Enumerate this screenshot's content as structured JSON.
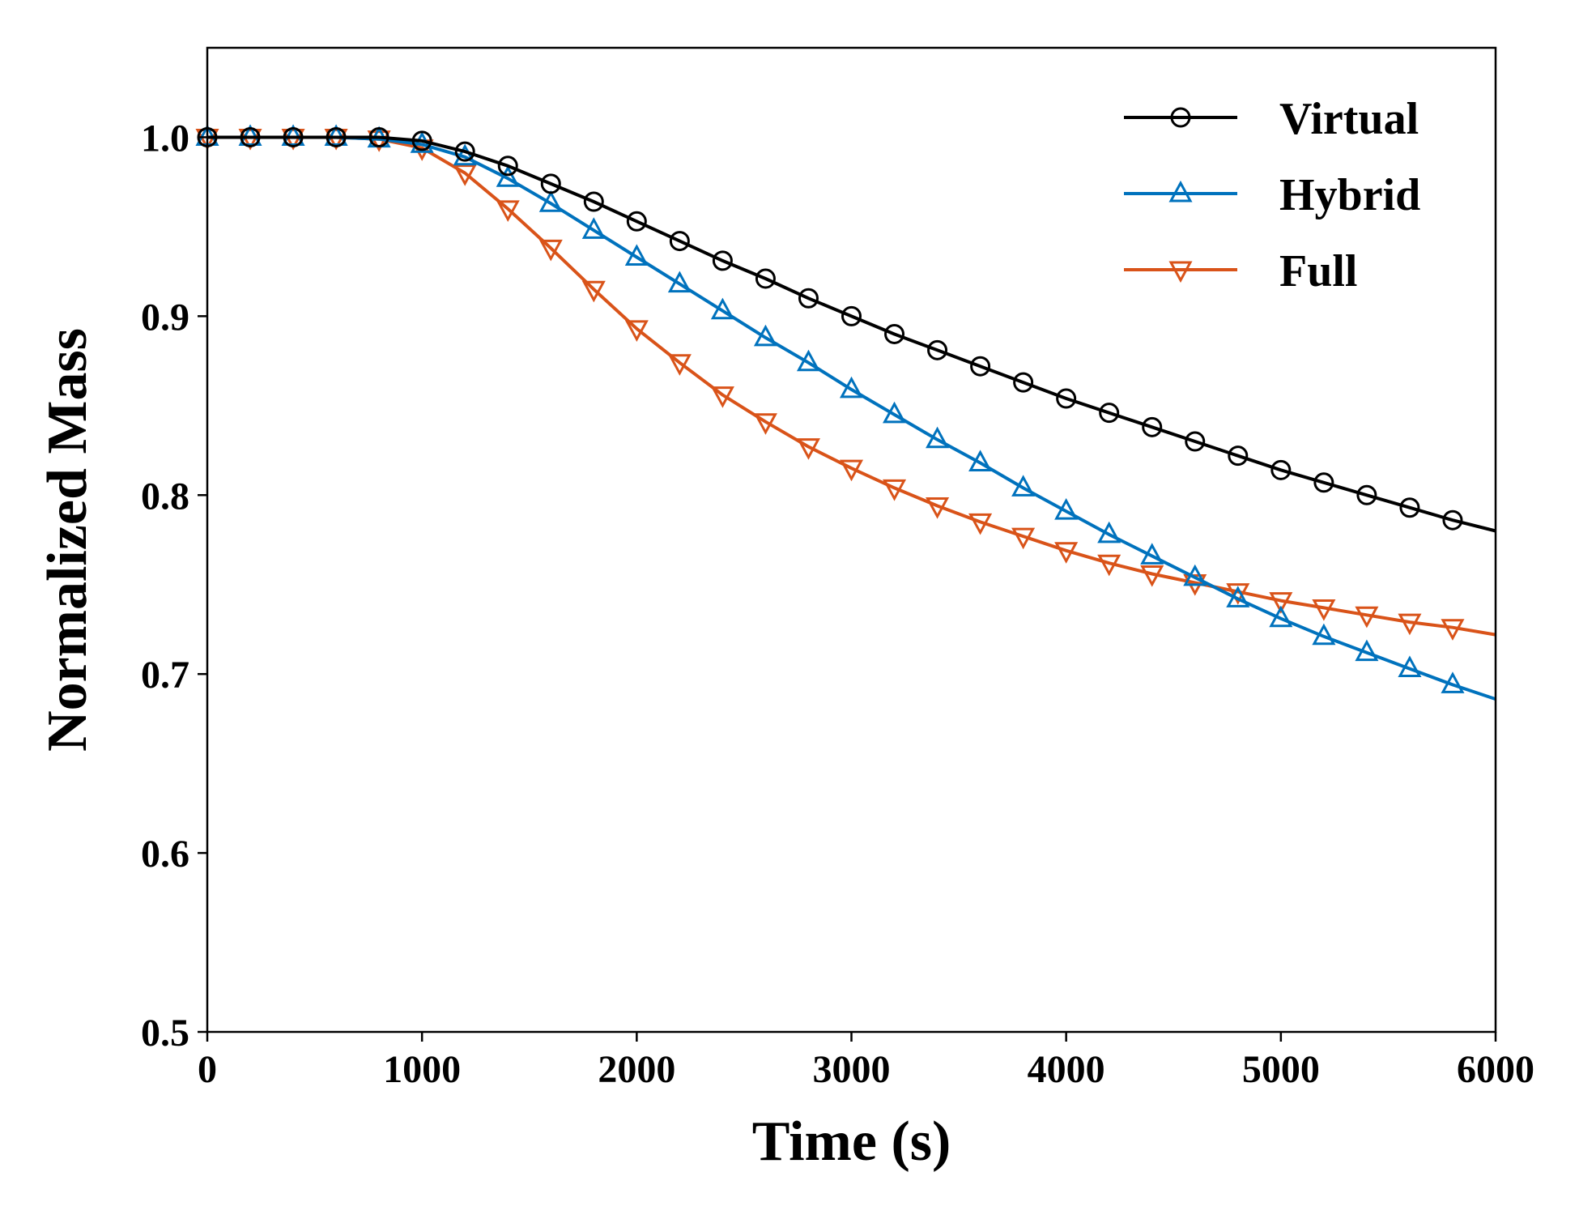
{
  "chart_data": {
    "type": "line",
    "title": "",
    "xlabel": "Time (s)",
    "ylabel": "Normalized Mass",
    "xlim": [
      0,
      6000
    ],
    "ylim": [
      0.5,
      1.05
    ],
    "xticks": [
      0,
      1000,
      2000,
      3000,
      4000,
      5000,
      6000
    ],
    "xtick_labels": [
      "0",
      "1000",
      "2000",
      "3000",
      "4000",
      "5000",
      "6000"
    ],
    "yticks": [
      0.5,
      0.6,
      0.7,
      0.8,
      0.9,
      1.0
    ],
    "ytick_labels": [
      "0.5",
      "0.6",
      "0.7",
      "0.8",
      "0.9",
      "1.0"
    ],
    "grid": false,
    "legend_position": "top-right",
    "series": [
      {
        "name": "Virtual",
        "color": "#000000",
        "marker": "circle",
        "x": [
          0,
          200,
          400,
          600,
          800,
          1000,
          1200,
          1400,
          1600,
          1800,
          2000,
          2200,
          2400,
          2600,
          2800,
          3000,
          3200,
          3400,
          3600,
          3800,
          4000,
          4200,
          4400,
          4600,
          4800,
          5000,
          5200,
          5400,
          5600,
          5800,
          6000
        ],
        "y": [
          1.0,
          1.0,
          1.0,
          1.0,
          1.0,
          0.998,
          0.992,
          0.984,
          0.974,
          0.964,
          0.953,
          0.942,
          0.931,
          0.921,
          0.91,
          0.9,
          0.89,
          0.881,
          0.872,
          0.863,
          0.854,
          0.846,
          0.838,
          0.83,
          0.822,
          0.814,
          0.807,
          0.8,
          0.793,
          0.786,
          0.78
        ],
        "marker_stop": 5800
      },
      {
        "name": "Hybrid",
        "color": "#0072BD",
        "marker": "triangle-up",
        "x": [
          0,
          200,
          400,
          600,
          800,
          1000,
          1200,
          1400,
          1600,
          1800,
          2000,
          2200,
          2400,
          2600,
          2800,
          3000,
          3200,
          3400,
          3600,
          3800,
          4000,
          4200,
          4400,
          4600,
          4800,
          5000,
          5200,
          5400,
          5600,
          5800,
          6000
        ],
        "y": [
          1.0,
          1.0,
          1.0,
          1.0,
          0.999,
          0.996,
          0.989,
          0.977,
          0.963,
          0.948,
          0.933,
          0.918,
          0.903,
          0.888,
          0.874,
          0.859,
          0.845,
          0.831,
          0.818,
          0.804,
          0.791,
          0.778,
          0.766,
          0.754,
          0.742,
          0.731,
          0.721,
          0.712,
          0.703,
          0.694,
          0.686
        ],
        "marker_stop": 5800
      },
      {
        "name": "Full",
        "color": "#D95319",
        "marker": "triangle-down",
        "x": [
          0,
          200,
          400,
          600,
          800,
          1000,
          1200,
          1400,
          1600,
          1800,
          2000,
          2200,
          2400,
          2600,
          2800,
          3000,
          3200,
          3400,
          3600,
          3800,
          4000,
          4200,
          4400,
          4600,
          4800,
          5000,
          5200,
          5400,
          5600,
          5800,
          6000
        ],
        "y": [
          1.0,
          1.0,
          1.0,
          1.0,
          0.999,
          0.994,
          0.98,
          0.96,
          0.938,
          0.915,
          0.893,
          0.874,
          0.856,
          0.841,
          0.827,
          0.815,
          0.804,
          0.794,
          0.785,
          0.777,
          0.769,
          0.762,
          0.756,
          0.751,
          0.746,
          0.741,
          0.737,
          0.733,
          0.729,
          0.726,
          0.722
        ],
        "marker_stop": 5800
      }
    ]
  }
}
